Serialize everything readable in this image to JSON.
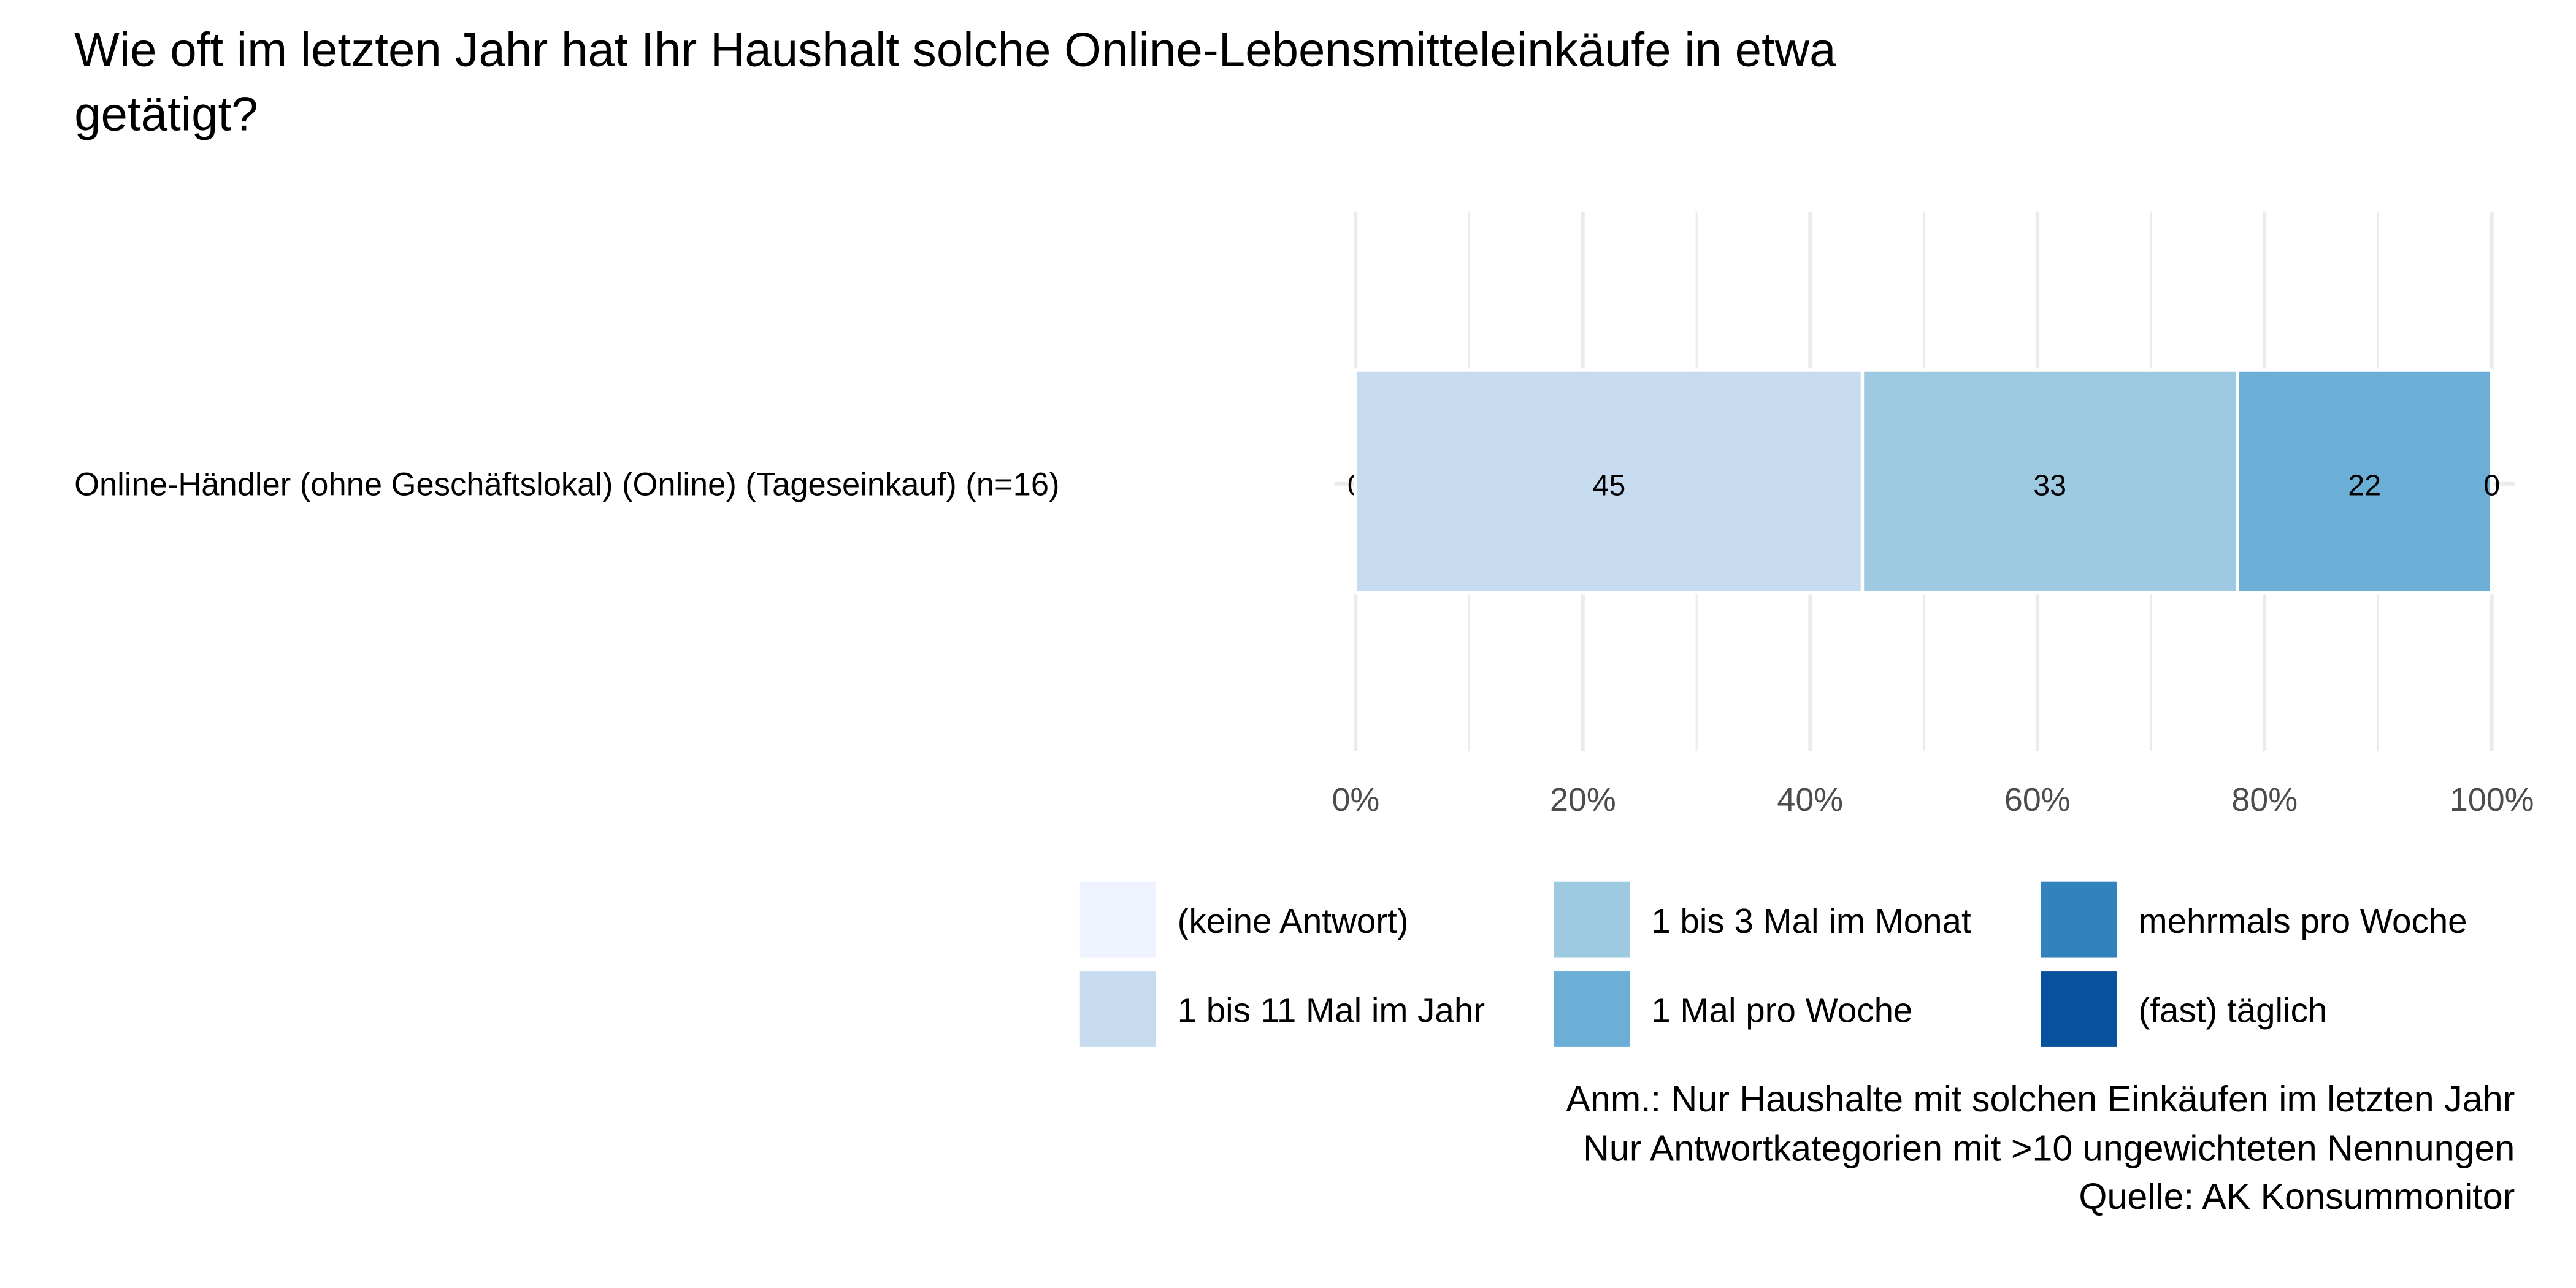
{
  "chart_data": {
    "type": "bar",
    "orientation": "horizontal-stacked",
    "title": "Wie oft im letzten Jahr hat Ihr Haushalt solche Online-Lebensmitteleinkäufe in etwa",
    "title_line2": "getätigt?",
    "categories": [
      "Online-Händler (ohne Geschäftslokal) (Online) (Tageseinkauf) (n=16)"
    ],
    "series": [
      {
        "name": "(keine Antwort)",
        "color": "#eff3ff",
        "values": [
          0
        ],
        "label": "0"
      },
      {
        "name": "1 bis 11 Mal im Jahr",
        "color": "#c6dbef",
        "values": [
          44.6
        ],
        "label": "45"
      },
      {
        "name": "1 bis 3 Mal im Monat",
        "color": "#9ecae1",
        "values": [
          33.0
        ],
        "label": "33"
      },
      {
        "name": "1 Mal pro Woche",
        "color": "#6baed6",
        "values": [
          22.4
        ],
        "label": "22"
      },
      {
        "name": "mehrmals pro Woche",
        "color": "#3182bd",
        "values": [
          0
        ],
        "label": "0"
      },
      {
        "name": "(fast) täglich",
        "color": "#08519c",
        "values": [
          0
        ],
        "label": null
      }
    ],
    "xlim": [
      0,
      100
    ],
    "xticks": [
      0,
      20,
      40,
      60,
      80,
      100
    ],
    "xtick_labels": [
      "0%",
      "20%",
      "40%",
      "60%",
      "80%",
      "100%"
    ],
    "grid": true,
    "legend_position": "bottom"
  },
  "notes": [
    "Anm.: Nur Haushalte mit solchen Einkäufen im letzten Jahr",
    "Nur Antwortkategorien mit >10 ungewichteten Nennungen",
    "Quelle: AK Konsummonitor"
  ]
}
